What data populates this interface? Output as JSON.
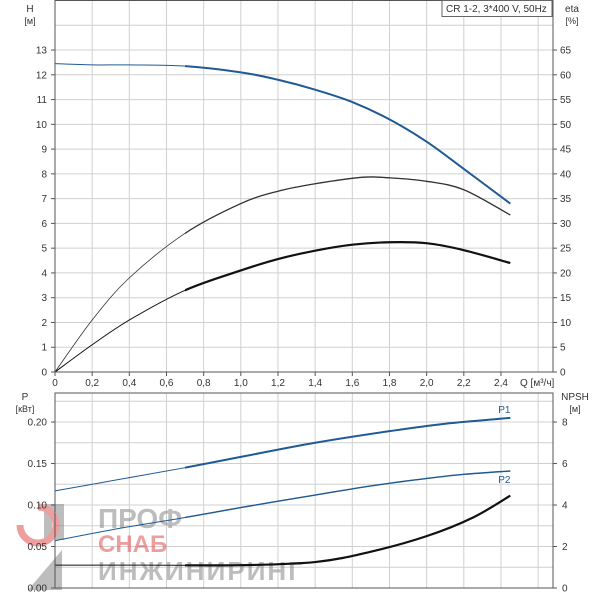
{
  "chart_data": [
    {
      "type": "line",
      "title": "CR 1-2, 3*400 V, 50Hz",
      "xlabel": "Q [м³/ч]",
      "x_ticks": [
        "0",
        "0,2",
        "0,4",
        "0,6",
        "0,8",
        "1,0",
        "1,2",
        "1,4",
        "1,6",
        "1,8",
        "2,0",
        "2,2",
        "2,4"
      ],
      "xlim": [
        0,
        2.68
      ],
      "ylabel_left": "H",
      "ylabel_left_unit": "[м]",
      "ylabel_right": "eta",
      "ylabel_right_unit": "[%]",
      "y_left_ticks": [
        "0",
        "1",
        "2",
        "3",
        "4",
        "5",
        "6",
        "7",
        "8",
        "9",
        "10",
        "11",
        "12",
        "13"
      ],
      "y_right_ticks": [
        "0",
        "5",
        "10",
        "15",
        "20",
        "25",
        "30",
        "35",
        "40",
        "45",
        "50",
        "55",
        "60",
        "65"
      ],
      "ylim_left": [
        0,
        15
      ],
      "ylim_right": [
        0,
        75
      ],
      "grid": true,
      "duty_range_start_q": 0.7,
      "series": [
        {
          "name": "H",
          "axis": "left",
          "color": "#1f5a94",
          "x": [
            0,
            0.2,
            0.4,
            0.7,
            1.0,
            1.2,
            1.4,
            1.6,
            1.8,
            2.0,
            2.2,
            2.45
          ],
          "y": [
            12.45,
            12.4,
            12.4,
            12.35,
            12.1,
            11.8,
            11.4,
            10.9,
            10.2,
            9.3,
            8.2,
            6.8
          ]
        },
        {
          "name": "eta",
          "axis": "right",
          "color": "#333333",
          "x": [
            0,
            0.2,
            0.4,
            0.7,
            1.0,
            1.2,
            1.4,
            1.65,
            1.8,
            2.0,
            2.2,
            2.45
          ],
          "y": [
            0,
            10.5,
            19,
            28,
            34,
            36.5,
            38,
            39.3,
            39.2,
            38.5,
            36.8,
            31.7
          ]
        },
        {
          "name": "eta total",
          "axis": "right",
          "color": "#111111",
          "x": [
            0,
            0.2,
            0.4,
            0.7,
            1.0,
            1.2,
            1.4,
            1.6,
            1.8,
            2.0,
            2.2,
            2.45
          ],
          "y": [
            0,
            5.5,
            10.5,
            16.5,
            20.5,
            22.8,
            24.5,
            25.7,
            26.2,
            26,
            24.6,
            22
          ]
        }
      ]
    },
    {
      "type": "line",
      "xlim": [
        0,
        2.68
      ],
      "ylabel_left": "P",
      "ylabel_left_unit": "[кВт]",
      "ylabel_right": "NPSH",
      "ylabel_right_unit": "[м]",
      "y_left_ticks": [
        "0.00",
        "0.05",
        "0.10",
        "0.15",
        "0.20"
      ],
      "y_right_ticks": [
        "0",
        "2",
        "4",
        "6",
        "8"
      ],
      "ylim_left": [
        0,
        0.235
      ],
      "ylim_right": [
        0,
        9.4
      ],
      "grid": true,
      "series": [
        {
          "name": "P1",
          "label": "P1",
          "axis": "left",
          "color": "#1f5a94",
          "x": [
            0,
            0.35,
            0.7,
            1.0,
            1.4,
            1.8,
            2.1,
            2.45
          ],
          "y": [
            0.117,
            0.131,
            0.145,
            0.158,
            0.175,
            0.189,
            0.198,
            0.205
          ]
        },
        {
          "name": "P2",
          "label": "P2",
          "axis": "left",
          "color": "#1f5a94",
          "x": [
            0,
            0.35,
            0.7,
            1.0,
            1.4,
            1.7,
            2.0,
            2.2,
            2.45
          ],
          "y": [
            0.057,
            0.072,
            0.085,
            0.097,
            0.112,
            0.123,
            0.132,
            0.137,
            0.141
          ]
        },
        {
          "name": "NPSH",
          "axis": "right",
          "color": "#111111",
          "x": [
            0,
            0.5,
            1.0,
            1.4,
            1.7,
            2.0,
            2.25,
            2.45
          ],
          "y": [
            1.1,
            1.1,
            1.1,
            1.25,
            1.75,
            2.5,
            3.4,
            4.45
          ]
        }
      ]
    }
  ],
  "watermark": {
    "line1": "ПРОФ",
    "line2": "СНАБ",
    "line3": "ИНЖИНИРИНГ",
    "brand_color": "#e05050"
  }
}
